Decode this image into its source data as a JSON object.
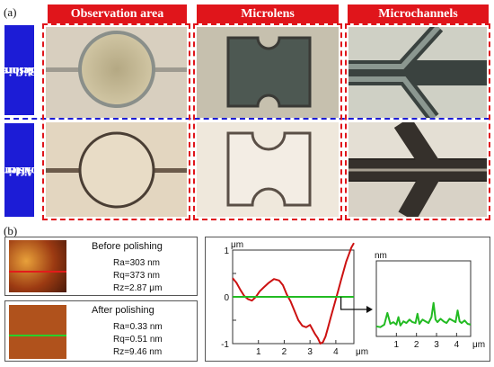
{
  "figure": {
    "label_a": "(a)",
    "label_b": "(b)",
    "columns": [
      "Observation area",
      "Microlens",
      "Microchannels"
    ],
    "rows": [
      {
        "line1": "Before",
        "line2": "polishing"
      },
      {
        "line1": "After",
        "line2": "polishing"
      }
    ]
  },
  "surface": {
    "before": {
      "title": "Before polishing",
      "ra": "Ra=303 nm",
      "rq": "Rq=373 nm",
      "rz": "Rz=2.87 μm"
    },
    "after": {
      "title": "After polishing",
      "ra": "Ra=0.33 nm",
      "rq": "Rq=0.51 nm",
      "rz": "Rz=9.46 nm"
    }
  },
  "chart_data": [
    {
      "type": "line",
      "ylabel": "μm",
      "xlabel": "μm",
      "xlim": [
        0,
        4.7
      ],
      "ylim": [
        -1,
        1
      ],
      "xticks": [
        1,
        2,
        3,
        4
      ],
      "yticks": [
        1,
        0.5,
        0,
        -0.5,
        -1
      ],
      "series": [
        {
          "color": "#cc1111",
          "x": [
            0,
            0.15,
            0.3,
            0.45,
            0.6,
            0.75,
            0.9,
            1.05,
            1.2,
            1.4,
            1.6,
            1.8,
            1.95,
            2.1,
            2.25,
            2.4,
            2.55,
            2.7,
            2.85,
            3.0,
            3.1,
            3.2,
            3.3,
            3.4,
            3.5,
            3.6,
            3.7,
            3.8,
            3.9,
            4.0,
            4.1,
            4.2,
            4.3,
            4.4,
            4.5,
            4.6,
            4.7
          ],
          "y": [
            0.4,
            0.3,
            0.15,
            0.02,
            -0.05,
            -0.08,
            0.0,
            0.12,
            0.2,
            0.3,
            0.38,
            0.35,
            0.25,
            0.05,
            -0.1,
            -0.3,
            -0.5,
            -0.62,
            -0.65,
            -0.6,
            -0.7,
            -0.8,
            -0.88,
            -1.0,
            -0.97,
            -0.85,
            -0.65,
            -0.45,
            -0.25,
            -0.05,
            0.15,
            0.35,
            0.55,
            0.75,
            0.9,
            1.05,
            1.15
          ]
        },
        {
          "color": "#22bb22",
          "x": [
            0,
            4.7
          ],
          "y": [
            0,
            0
          ]
        }
      ]
    },
    {
      "type": "line",
      "ylabel": "nm",
      "xlabel": "μm",
      "xlim": [
        0,
        4.7
      ],
      "ylim": [
        -0.5,
        4
      ],
      "xticks": [
        1,
        2,
        3,
        4
      ],
      "series": [
        {
          "color": "#22bb22",
          "x": [
            0,
            0.2,
            0.4,
            0.55,
            0.7,
            0.85,
            1.0,
            1.1,
            1.2,
            1.35,
            1.5,
            1.65,
            1.8,
            1.95,
            2.05,
            2.15,
            2.3,
            2.45,
            2.6,
            2.75,
            2.85,
            2.95,
            3.05,
            3.2,
            3.35,
            3.5,
            3.65,
            3.8,
            3.95,
            4.05,
            4.15,
            4.25,
            4.4,
            4.55,
            4.7
          ],
          "y": [
            0.1,
            0.05,
            0.2,
            0.9,
            0.25,
            0.35,
            0.2,
            0.65,
            0.15,
            0.4,
            0.3,
            0.5,
            0.35,
            0.3,
            0.85,
            0.25,
            0.5,
            0.4,
            0.3,
            0.65,
            1.5,
            0.5,
            0.35,
            0.55,
            0.4,
            0.3,
            0.55,
            0.45,
            0.35,
            1.05,
            0.4,
            0.3,
            0.45,
            0.25,
            0.2
          ]
        }
      ]
    }
  ]
}
